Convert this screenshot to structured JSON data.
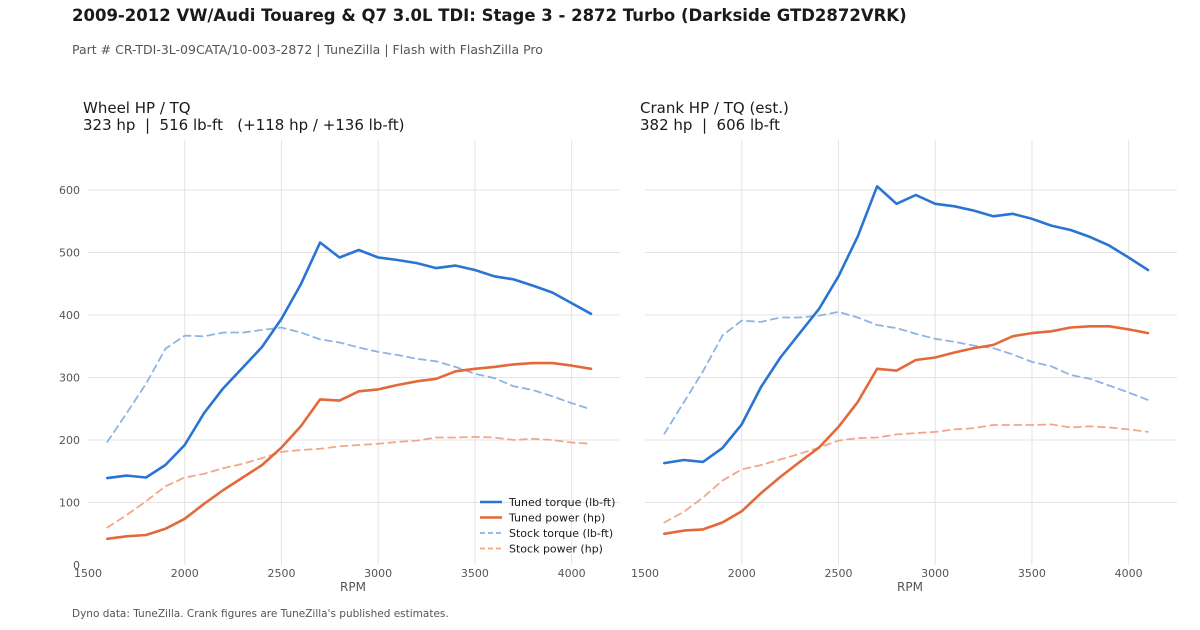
{
  "header": {
    "title": "2009-2012 VW/Audi Touareg & Q7 3.0L TDI: Stage 3 - 2872 Turbo (Darkside GTD2872VRK)",
    "subtitle": "Part # CR-TDI-3L-09CATA/10-003-2872  |  TuneZilla  |  Flash with FlashZilla Pro"
  },
  "footnote": "Dyno data: TuneZilla. Crank figures are TuneZilla's published estimates.",
  "colors": {
    "tuned_torque": "#2a74d2",
    "tuned_power": "#e4693a",
    "stock_torque": "#8cb4e4",
    "stock_power": "#f0a888",
    "grid": "#e4e4e4"
  },
  "chart_data": [
    {
      "type": "line",
      "panel": "left",
      "title_line1": "Wheel HP / TQ",
      "title_line2": "323 hp  |  516 lb-ft   (+118 hp / +136 lb-ft)",
      "xlabel": "RPM",
      "ylabel": "",
      "xlim": [
        1500,
        4250
      ],
      "ylim": [
        0,
        680
      ],
      "x_ticks": [
        1500,
        2000,
        2500,
        3000,
        3500,
        4000
      ],
      "y_ticks": [
        0,
        100,
        200,
        300,
        400,
        500,
        600
      ],
      "grid": true,
      "legend_position": "lower-right",
      "x": [
        1600,
        1700,
        1800,
        1900,
        2000,
        2100,
        2200,
        2300,
        2400,
        2500,
        2600,
        2700,
        2800,
        2900,
        3000,
        3100,
        3200,
        3300,
        3400,
        3500,
        3600,
        3700,
        3800,
        3900,
        4000,
        4100
      ],
      "series": [
        {
          "name": "Tuned torque (lb-ft)",
          "style": "solid",
          "color_key": "tuned_torque",
          "values": [
            139,
            143,
            140,
            160,
            192,
            243,
            283,
            316,
            349,
            394,
            449,
            516,
            492,
            504,
            492,
            488,
            483,
            475,
            479,
            472,
            462,
            457,
            447,
            436,
            419,
            402
          ]
        },
        {
          "name": "Tuned power (hp)",
          "style": "solid",
          "color_key": "tuned_power",
          "values": [
            42,
            46,
            48,
            58,
            74,
            98,
            120,
            140,
            160,
            188,
            222,
            265,
            263,
            278,
            281,
            288,
            294,
            298,
            310,
            314,
            317,
            321,
            323,
            323,
            319,
            314
          ]
        },
        {
          "name": "Stock torque (lb-ft)",
          "style": "dashed",
          "color_key": "stock_torque",
          "values": [
            197,
            243,
            290,
            346,
            367,
            366,
            372,
            372,
            376,
            380,
            372,
            361,
            356,
            348,
            341,
            336,
            330,
            326,
            317,
            306,
            299,
            286,
            280,
            270,
            259,
            249
          ]
        },
        {
          "name": "Stock power (hp)",
          "style": "dashed",
          "color_key": "stock_power",
          "values": [
            60,
            80,
            102,
            126,
            140,
            146,
            155,
            162,
            171,
            181,
            184,
            186,
            190,
            192,
            194,
            197,
            199,
            204,
            204,
            205,
            204,
            200,
            202,
            200,
            196,
            194
          ]
        }
      ]
    },
    {
      "type": "line",
      "panel": "right",
      "title_line1": "Crank HP / TQ (est.)",
      "title_line2": "382 hp  |  606 lb-ft",
      "xlabel": "RPM",
      "ylabel": "",
      "xlim": [
        1500,
        4250
      ],
      "ylim": [
        0,
        680
      ],
      "x_ticks": [
        1500,
        2000,
        2500,
        3000,
        3500,
        4000
      ],
      "y_ticks": [
        0,
        100,
        200,
        300,
        400,
        500,
        600
      ],
      "grid": true,
      "x": [
        1600,
        1700,
        1800,
        1900,
        2000,
        2100,
        2200,
        2300,
        2400,
        2500,
        2600,
        2700,
        2800,
        2900,
        3000,
        3100,
        3200,
        3300,
        3400,
        3500,
        3600,
        3700,
        3800,
        3900,
        4000,
        4100
      ],
      "series": [
        {
          "name": "Tuned torque (lb-ft)",
          "style": "solid",
          "color_key": "tuned_torque",
          "values": [
            163,
            168,
            165,
            187,
            225,
            285,
            332,
            371,
            410,
            462,
            526,
            606,
            578,
            592,
            578,
            574,
            567,
            558,
            562,
            554,
            543,
            536,
            525,
            511,
            492,
            472
          ]
        },
        {
          "name": "Tuned power (hp)",
          "style": "solid",
          "color_key": "tuned_power",
          "values": [
            50,
            55,
            57,
            68,
            86,
            115,
            141,
            165,
            188,
            221,
            261,
            314,
            311,
            328,
            332,
            340,
            347,
            352,
            366,
            371,
            374,
            380,
            382,
            382,
            377,
            371
          ]
        },
        {
          "name": "Stock torque (lb-ft)",
          "style": "dashed",
          "color_key": "stock_torque",
          "values": [
            210,
            260,
            310,
            367,
            391,
            389,
            396,
            396,
            399,
            405,
            396,
            384,
            379,
            370,
            362,
            357,
            351,
            347,
            337,
            325,
            318,
            304,
            298,
            287,
            276,
            264
          ]
        },
        {
          "name": "Stock power (hp)",
          "style": "dashed",
          "color_key": "stock_power",
          "values": [
            68,
            85,
            108,
            135,
            153,
            160,
            169,
            178,
            188,
            199,
            203,
            204,
            209,
            211,
            213,
            217,
            219,
            224,
            224,
            224,
            225,
            220,
            222,
            220,
            217,
            213
          ]
        }
      ]
    }
  ]
}
